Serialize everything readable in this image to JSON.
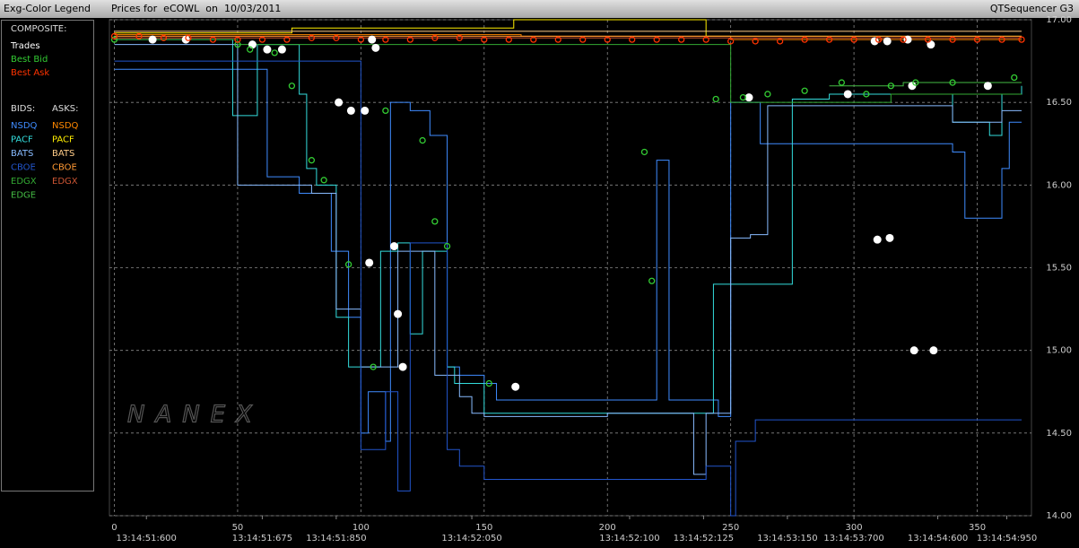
{
  "header": {
    "left": "Exg-Color Legend",
    "title": "Prices for  eCOWL  on  10/03/2011",
    "right": "QTSequencer G3"
  },
  "legend": {
    "composite": "COMPOSITE:",
    "bids": "BIDS:",
    "asks": "ASKS:"
  },
  "watermark": "NANEX",
  "chart_data": {
    "type": "step",
    "xlim": [
      -2,
      372
    ],
    "ylim": [
      14,
      17
    ],
    "xticks": [
      0,
      50,
      100,
      150,
      200,
      250,
      300,
      350
    ],
    "time_ticks": [
      {
        "value": 13,
        "label": "13:14:51:600"
      },
      {
        "value": 60,
        "label": "13:14:51:675"
      },
      {
        "value": 90,
        "label": "13:14:51:850"
      },
      {
        "value": 145,
        "label": "13:14:52:050"
      },
      {
        "value": 209,
        "label": "13:14:52:100"
      },
      {
        "value": 239,
        "label": "13:14:52:125"
      },
      {
        "value": 273,
        "label": "13:14:53:150"
      },
      {
        "value": 300,
        "label": "13:14:53:700"
      },
      {
        "value": 334,
        "label": "13:14:54:600"
      },
      {
        "value": 362,
        "label": "13:14:54:950"
      }
    ],
    "yticks": [
      {
        "value": 14,
        "label": "14.00"
      },
      {
        "value": 14.5,
        "label": "14.50"
      },
      {
        "value": 15,
        "label": "15.00"
      },
      {
        "value": 15.5,
        "label": "15.50"
      },
      {
        "value": 16,
        "label": "16.00"
      },
      {
        "value": 16.5,
        "label": "16.50"
      },
      {
        "value": 17,
        "label": "17.00"
      }
    ],
    "grid": true,
    "bids": [
      {
        "name": "NSDQ",
        "color": "#3f8cff",
        "x": [
          0,
          45,
          60,
          62,
          70,
          75,
          85,
          88,
          95,
          100,
          103,
          110,
          112,
          120,
          128,
          135,
          140,
          150,
          155,
          215,
          220,
          225,
          245,
          250,
          255,
          262,
          290,
          295,
          330,
          340,
          345,
          350,
          355,
          360,
          363,
          368
        ],
        "values": [
          16.7,
          16.7,
          16.7,
          16.05,
          16.05,
          15.95,
          15.95,
          15.6,
          15.2,
          14.5,
          14.75,
          14.45,
          16.5,
          16.45,
          16.3,
          14.9,
          14.85,
          14.8,
          14.7,
          14.7,
          16.15,
          14.7,
          14.6,
          16.5,
          16.5,
          16.25,
          16.25,
          16.25,
          16.25,
          16.2,
          15.8,
          15.8,
          15.8,
          16.1,
          16.38,
          16.38
        ]
      },
      {
        "name": "PACF",
        "color": "#33dddd",
        "x": [
          0,
          44,
          48,
          55,
          58,
          75,
          78,
          82,
          90,
          95,
          105,
          108,
          112,
          115,
          120,
          125,
          135,
          138,
          150,
          240,
          243,
          250,
          260,
          275,
          290,
          315,
          340,
          355,
          360,
          368
        ],
        "values": [
          16.88,
          16.88,
          16.42,
          16.42,
          16.85,
          16.55,
          16.1,
          16.0,
          15.2,
          14.9,
          14.9,
          15.6,
          15.6,
          15.65,
          15.1,
          15.6,
          14.9,
          14.8,
          14.62,
          14.62,
          15.4,
          15.4,
          15.4,
          16.52,
          16.55,
          16.55,
          16.38,
          16.3,
          16.55,
          16.6
        ]
      },
      {
        "name": "BATS",
        "color": "#88bbff",
        "x": [
          0,
          45,
          50,
          70,
          80,
          90,
          95,
          100,
          105,
          115,
          130,
          140,
          145,
          150,
          200,
          230,
          235,
          240,
          250,
          258,
          265,
          300,
          340,
          355,
          360,
          368
        ],
        "values": [
          16.85,
          16.85,
          16.0,
          16.0,
          15.95,
          15.25,
          15.25,
          14.9,
          14.9,
          15.6,
          14.85,
          14.72,
          14.62,
          14.6,
          14.62,
          14.62,
          14.25,
          14.62,
          15.68,
          15.7,
          16.48,
          16.48,
          16.38,
          16.38,
          16.45,
          16.45
        ]
      },
      {
        "name": "CBOE",
        "color": "#2255cc",
        "x": [
          0,
          50,
          100,
          110,
          115,
          120,
          135,
          140,
          150,
          160,
          200,
          230,
          240,
          250,
          252,
          260,
          300,
          360,
          368
        ],
        "values": [
          16.75,
          16.75,
          14.4,
          14.75,
          14.15,
          15.65,
          14.4,
          14.3,
          14.22,
          14.22,
          14.22,
          14.22,
          14.3,
          14.0,
          14.45,
          14.58,
          14.58,
          14.58,
          14.58
        ]
      },
      {
        "name": "EDGX",
        "color": "#33aa33",
        "x": [
          0,
          50,
          100,
          110,
          150,
          250,
          300,
          315,
          320,
          368
        ],
        "values": [
          16.88,
          16.85,
          16.85,
          16.85,
          16.85,
          16.5,
          16.5,
          16.55,
          16.55,
          16.55
        ]
      },
      {
        "name": "EDGE",
        "color": "#44bb44",
        "x": [
          290,
          320,
          368
        ],
        "values": [
          16.6,
          16.62,
          16.62
        ]
      }
    ],
    "asks": [
      {
        "name": "NSDQ",
        "color": "#ff8800",
        "x": [
          0,
          150,
          165,
          240,
          250,
          368
        ],
        "values": [
          16.91,
          16.91,
          16.9,
          16.9,
          16.88,
          16.88
        ]
      },
      {
        "name": "PACF",
        "color": "#ffee00",
        "x": [
          0,
          70,
          72,
          160,
          162,
          238,
          240,
          368
        ],
        "values": [
          16.92,
          16.92,
          16.95,
          16.95,
          17.0,
          17.0,
          16.9,
          16.9
        ]
      },
      {
        "name": "BATS",
        "color": "#ffcc88",
        "x": [
          0,
          45,
          70,
          150,
          368
        ],
        "values": [
          16.93,
          16.93,
          16.93,
          16.93,
          16.93
        ]
      },
      {
        "name": "CBOE",
        "color": "#ff9933",
        "x": [
          0,
          368
        ],
        "values": [
          16.9,
          16.9
        ]
      },
      {
        "name": "EDGX",
        "color": "#cc5533",
        "x": [
          0,
          368
        ],
        "values": [
          16.89,
          16.89
        ]
      }
    ],
    "composite": [
      {
        "name": "Trades",
        "color": "#ffffff",
        "style": "dots",
        "x": [
          15.5,
          29,
          56,
          62,
          68,
          91,
          96,
          101.6,
          104.5,
          106,
          103.4,
          113.5,
          115,
          117,
          162.7,
          257.4,
          297.5,
          308.4,
          309.5,
          314.5,
          313.5,
          321.8,
          323.6,
          324.4,
          332.3,
          331.2,
          354.3
        ],
        "values": [
          16.88,
          16.88,
          16.85,
          16.82,
          16.82,
          16.5,
          16.45,
          16.45,
          16.88,
          16.83,
          15.53,
          15.63,
          15.22,
          14.9,
          14.78,
          16.53,
          16.55,
          16.87,
          15.67,
          15.68,
          16.87,
          16.88,
          16.6,
          15.0,
          15.0,
          16.85,
          16.6
        ]
      },
      {
        "name": "Best Bid",
        "color": "#33cc33",
        "style": "markers",
        "x": [
          0,
          50,
          55,
          65,
          72,
          80,
          85,
          95,
          105,
          110,
          125,
          130,
          135,
          152,
          215,
          218,
          244,
          255,
          265,
          280,
          295,
          305,
          315,
          325,
          340,
          365
        ],
        "values": [
          16.88,
          16.85,
          16.82,
          16.8,
          16.6,
          16.15,
          16.03,
          15.52,
          14.9,
          16.45,
          16.27,
          15.78,
          15.63,
          14.8,
          16.2,
          15.42,
          16.52,
          16.53,
          16.55,
          16.57,
          16.62,
          16.55,
          16.6,
          16.62,
          16.62,
          16.65
        ]
      },
      {
        "name": "Best Ask",
        "color": "#ff3300",
        "style": "markers",
        "x": [
          0,
          10,
          20,
          30,
          40,
          50,
          60,
          70,
          80,
          90,
          100,
          110,
          120,
          130,
          140,
          150,
          160,
          170,
          180,
          190,
          200,
          210,
          220,
          230,
          240,
          250,
          260,
          270,
          280,
          290,
          300,
          310,
          320,
          330,
          340,
          350,
          360,
          368
        ],
        "values": [
          16.9,
          16.9,
          16.89,
          16.89,
          16.88,
          16.88,
          16.88,
          16.88,
          16.89,
          16.89,
          16.88,
          16.88,
          16.88,
          16.89,
          16.89,
          16.88,
          16.88,
          16.88,
          16.88,
          16.88,
          16.88,
          16.88,
          16.88,
          16.88,
          16.88,
          16.87,
          16.87,
          16.87,
          16.88,
          16.88,
          16.88,
          16.88,
          16.88,
          16.88,
          16.88,
          16.88,
          16.88,
          16.88
        ]
      }
    ]
  }
}
